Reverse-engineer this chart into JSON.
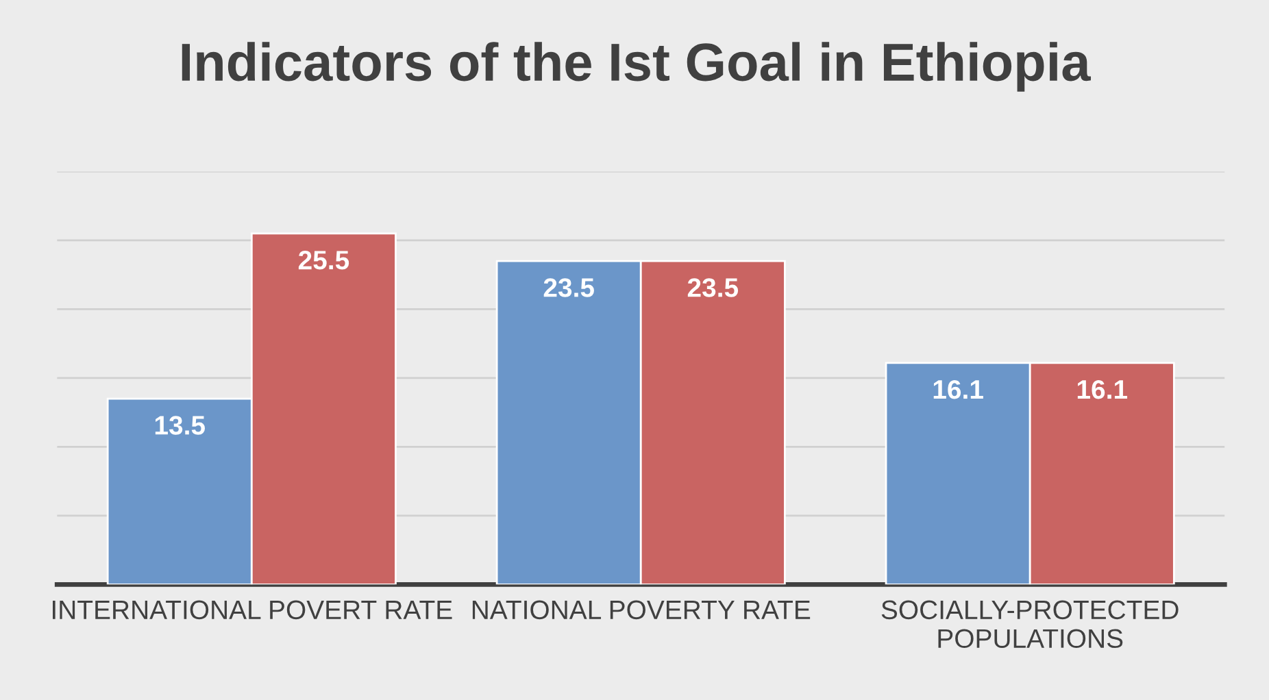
{
  "chart_data": {
    "type": "bar",
    "title": "Indicators of the Ist Goal in Ethiopia",
    "categories": [
      "INTERNATIONAL POVERT RATE",
      "NATIONAL POVERTY RATE",
      "SOCIALLY-PROTECTED POPULATIONS"
    ],
    "series": [
      {
        "color": "#6b96c9",
        "values": [
          13.5,
          23.5,
          16.1
        ]
      },
      {
        "color": "#c96462",
        "values": [
          25.5,
          23.5,
          16.1
        ]
      }
    ],
    "ylim": [
      0,
      30
    ],
    "yticks": [
      {
        "value": 0,
        "label": null
      },
      {
        "value": 5,
        "label": null
      },
      {
        "value": 10,
        "label": null
      },
      {
        "value": 15,
        "label": null
      },
      {
        "value": 20,
        "label": null
      },
      {
        "value": 25,
        "label": null
      },
      {
        "value": 30,
        "label": null
      }
    ],
    "tick_labels": "x",
    "grid": "y",
    "data_labels": true
  }
}
